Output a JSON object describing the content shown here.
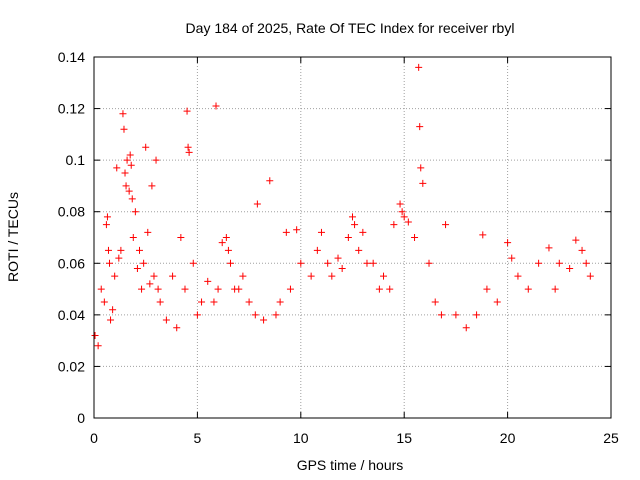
{
  "chart_data": {
    "type": "scatter",
    "title": "Day 184 of 2025, Rate Of TEC Index for receiver rbyl",
    "xlabel": "GPS time / hours",
    "ylabel": "ROTI / TECUs",
    "xlim": [
      0,
      25
    ],
    "ylim": [
      0,
      0.14
    ],
    "xticks": [
      0,
      5,
      10,
      15,
      20,
      25
    ],
    "xtick_labels": [
      "0",
      "5",
      "10",
      "15",
      "20",
      "25"
    ],
    "yticks": [
      0,
      0.02,
      0.04,
      0.06,
      0.08,
      0.1,
      0.12,
      0.14
    ],
    "ytick_labels": [
      "0",
      "0.02",
      "0.04",
      "0.06",
      "0.08",
      "0.1",
      "0.12",
      "0.14"
    ],
    "grid": true,
    "marker": "+",
    "color": "#ff0000",
    "series": [
      {
        "name": "ROTI",
        "x": [
          0.05,
          0.2,
          0.35,
          0.5,
          0.6,
          0.65,
          0.7,
          0.75,
          0.8,
          0.9,
          1.0,
          1.1,
          1.2,
          1.3,
          1.4,
          1.45,
          1.5,
          1.55,
          1.6,
          1.7,
          1.75,
          1.8,
          1.85,
          1.9,
          2.0,
          2.1,
          2.2,
          2.3,
          2.4,
          2.5,
          2.6,
          2.7,
          2.8,
          2.9,
          3.0,
          3.1,
          3.2,
          3.5,
          3.8,
          4.0,
          4.2,
          4.4,
          4.5,
          4.55,
          4.6,
          4.8,
          5.0,
          5.2,
          5.5,
          5.8,
          5.9,
          6.0,
          6.2,
          6.4,
          6.5,
          6.6,
          6.8,
          7.0,
          7.2,
          7.5,
          7.8,
          7.9,
          8.2,
          8.5,
          8.8,
          9.0,
          9.3,
          9.5,
          9.8,
          10.0,
          10.5,
          10.8,
          11.0,
          11.3,
          11.5,
          11.8,
          12.0,
          12.3,
          12.5,
          12.6,
          12.8,
          13.0,
          13.2,
          13.5,
          13.8,
          14.0,
          14.3,
          14.5,
          14.8,
          14.9,
          15.0,
          15.2,
          15.5,
          15.7,
          15.75,
          15.8,
          15.9,
          16.2,
          16.5,
          16.8,
          17.0,
          17.5,
          18.0,
          18.5,
          18.8,
          19.0,
          19.5,
          20.0,
          20.2,
          20.5,
          21.0,
          21.5,
          22.0,
          22.3,
          22.5,
          23.0,
          23.3,
          23.6,
          23.8,
          24.0
        ],
        "y": [
          0.032,
          0.028,
          0.05,
          0.045,
          0.075,
          0.078,
          0.065,
          0.06,
          0.038,
          0.042,
          0.055,
          0.097,
          0.062,
          0.065,
          0.118,
          0.112,
          0.095,
          0.09,
          0.1,
          0.088,
          0.102,
          0.098,
          0.085,
          0.07,
          0.08,
          0.058,
          0.065,
          0.05,
          0.06,
          0.105,
          0.072,
          0.052,
          0.09,
          0.055,
          0.1,
          0.05,
          0.045,
          0.038,
          0.055,
          0.035,
          0.07,
          0.05,
          0.119,
          0.105,
          0.103,
          0.06,
          0.04,
          0.045,
          0.053,
          0.045,
          0.121,
          0.05,
          0.068,
          0.07,
          0.065,
          0.06,
          0.05,
          0.05,
          0.055,
          0.045,
          0.04,
          0.083,
          0.038,
          0.092,
          0.04,
          0.045,
          0.072,
          0.05,
          0.073,
          0.06,
          0.055,
          0.065,
          0.072,
          0.06,
          0.055,
          0.062,
          0.058,
          0.07,
          0.078,
          0.075,
          0.065,
          0.072,
          0.06,
          0.06,
          0.05,
          0.055,
          0.05,
          0.075,
          0.083,
          0.08,
          0.078,
          0.076,
          0.07,
          0.136,
          0.113,
          0.097,
          0.091,
          0.06,
          0.045,
          0.04,
          0.075,
          0.04,
          0.035,
          0.04,
          0.071,
          0.05,
          0.045,
          0.068,
          0.062,
          0.055,
          0.05,
          0.06,
          0.066,
          0.05,
          0.06,
          0.058,
          0.069,
          0.065,
          0.06,
          0.055
        ]
      }
    ]
  }
}
